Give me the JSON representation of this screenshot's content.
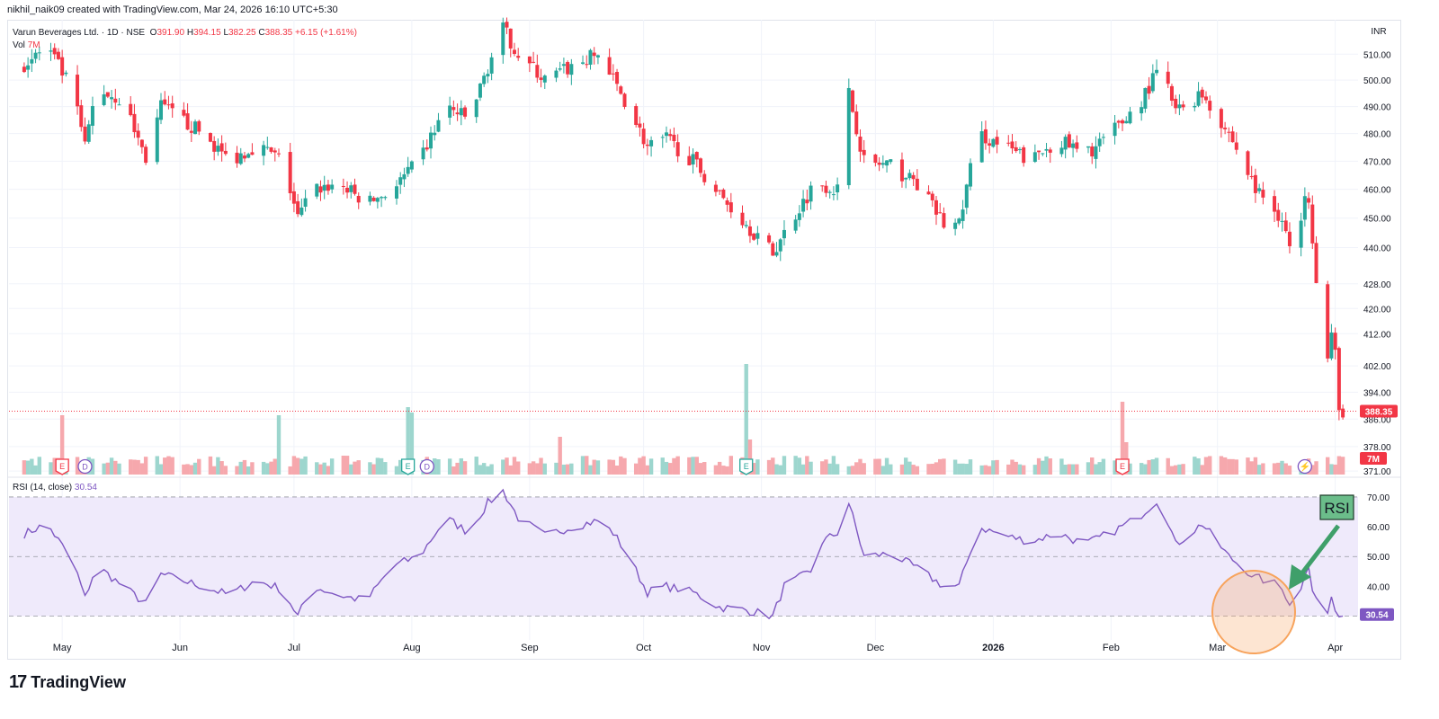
{
  "header": {
    "created_by": "nikhil_naik09 created with TradingView.com, Mar 24, 2026 16:10 UTC+5:30"
  },
  "legend": {
    "symbol": "Varun Beverages Ltd. · 1D · NSE",
    "open_label": "O",
    "open": "391.90",
    "high_label": "H",
    "high": "394.15",
    "low_label": "L",
    "low": "382.25",
    "close_label": "C",
    "close": "388.35",
    "change": "+6.15 (+1.61%)",
    "vol_label": "Vol",
    "vol_value": "7M"
  },
  "currency": "INR",
  "rsi": {
    "label": "RSI (14, close)",
    "value": "30.54",
    "annotation": "RSI"
  },
  "colors": {
    "up": "#26a69a",
    "down": "#f23645",
    "vol_up": "#9dd6ce",
    "vol_down": "#f6a8ad",
    "rsi_line": "#7e57c2",
    "rsi_band": "#efeafb",
    "highlight_circle": "#f7a35c",
    "arrow": "#3f9f6a"
  },
  "price_axis": {
    "ticks": [
      "510.00",
      "500.00",
      "490.00",
      "480.00",
      "470.00",
      "460.00",
      "450.00",
      "440.00",
      "428.00",
      "420.00",
      "412.00",
      "402.00",
      "394.00",
      "386.00",
      "378.00",
      "371.00"
    ],
    "last_price": "388.35",
    "volume_badge": "7M"
  },
  "rsi_axis": {
    "ticks": [
      "70.00",
      "60.00",
      "50.00",
      "40.00"
    ],
    "last_value": "30.54"
  },
  "time_axis": {
    "labels": [
      "May",
      "Jun",
      "Jul",
      "Aug",
      "Sep",
      "Oct",
      "Nov",
      "Dec",
      "2026",
      "Feb",
      "Mar",
      "Apr"
    ]
  },
  "event_markers": [
    {
      "type": "E",
      "color": "#f23645",
      "date": "2025-05-01"
    },
    {
      "type": "D",
      "color": "#7e57c2",
      "date": "2025-05-07"
    },
    {
      "type": "E",
      "color": "#26a69a",
      "date": "2025-07-31"
    },
    {
      "type": "D",
      "color": "#7e57c2",
      "date": "2025-08-05"
    },
    {
      "type": "E",
      "color": "#26a69a",
      "date": "2025-10-28"
    },
    {
      "type": "E",
      "color": "#f23645",
      "date": "2026-02-04"
    },
    {
      "type": "bolt",
      "color": "#7e57c2",
      "date": "2026-03-24"
    }
  ],
  "chart_data": {
    "type": "candlestick",
    "x_range": [
      "2025-04-17",
      "2026-04-07"
    ],
    "price_scale": "log",
    "price_range": [
      370,
      520
    ],
    "rsi_range": [
      22,
      73
    ],
    "rsi_levels": [
      70,
      50,
      30
    ],
    "anchors": [
      {
        "date": "2025-04-20",
        "price": 505,
        "rsi": 57
      },
      {
        "date": "2025-04-27",
        "price": 513,
        "rsi": 61
      },
      {
        "date": "2025-05-04",
        "price": 495,
        "rsi": 48
      },
      {
        "date": "2025-05-07",
        "price": 475,
        "rsi": 36
      },
      {
        "date": "2025-05-10",
        "price": 497,
        "rsi": 47
      },
      {
        "date": "2025-05-17",
        "price": 492,
        "rsi": 40
      },
      {
        "date": "2025-05-23",
        "price": 471,
        "rsi": 34
      },
      {
        "date": "2025-05-27",
        "price": 490,
        "rsi": 44
      },
      {
        "date": "2025-06-07",
        "price": 480,
        "rsi": 40
      },
      {
        "date": "2025-06-14",
        "price": 470,
        "rsi": 37
      },
      {
        "date": "2025-06-21",
        "price": 476,
        "rsi": 42
      },
      {
        "date": "2025-06-28",
        "price": 470,
        "rsi": 39
      },
      {
        "date": "2025-07-02",
        "price": 450,
        "rsi": 30
      },
      {
        "date": "2025-07-06",
        "price": 460,
        "rsi": 40
      },
      {
        "date": "2025-07-13",
        "price": 462,
        "rsi": 37
      },
      {
        "date": "2025-07-20",
        "price": 455,
        "rsi": 35
      },
      {
        "date": "2025-07-27",
        "price": 460,
        "rsi": 47
      },
      {
        "date": "2025-08-03",
        "price": 470,
        "rsi": 50
      },
      {
        "date": "2025-08-10",
        "price": 490,
        "rsi": 63
      },
      {
        "date": "2025-08-16",
        "price": 485,
        "rsi": 58
      },
      {
        "date": "2025-08-21",
        "price": 505,
        "rsi": 68
      },
      {
        "date": "2025-08-25",
        "price": 520,
        "rsi": 72
      },
      {
        "date": "2025-08-29",
        "price": 510,
        "rsi": 63
      },
      {
        "date": "2025-09-05",
        "price": 500,
        "rsi": 57
      },
      {
        "date": "2025-09-12",
        "price": 505,
        "rsi": 60
      },
      {
        "date": "2025-09-19",
        "price": 510,
        "rsi": 62
      },
      {
        "date": "2025-09-23",
        "price": 500,
        "rsi": 58
      },
      {
        "date": "2025-09-27",
        "price": 490,
        "rsi": 50
      },
      {
        "date": "2025-10-02",
        "price": 475,
        "rsi": 38
      },
      {
        "date": "2025-10-07",
        "price": 478,
        "rsi": 40
      },
      {
        "date": "2025-10-14",
        "price": 470,
        "rsi": 38
      },
      {
        "date": "2025-10-21",
        "price": 458,
        "rsi": 33
      },
      {
        "date": "2025-10-28",
        "price": 448,
        "rsi": 32
      },
      {
        "date": "2025-11-04",
        "price": 438,
        "rsi": 30
      },
      {
        "date": "2025-11-07",
        "price": 445,
        "rsi": 40
      },
      {
        "date": "2025-11-14",
        "price": 460,
        "rsi": 45
      },
      {
        "date": "2025-11-17",
        "price": 462,
        "rsi": 55
      },
      {
        "date": "2025-11-21",
        "price": 460,
        "rsi": 58
      },
      {
        "date": "2025-11-24",
        "price": 495,
        "rsi": 68
      },
      {
        "date": "2025-11-28",
        "price": 470,
        "rsi": 50
      },
      {
        "date": "2025-12-05",
        "price": 468,
        "rsi": 51
      },
      {
        "date": "2025-12-12",
        "price": 462,
        "rsi": 46
      },
      {
        "date": "2025-12-19",
        "price": 448,
        "rsi": 40
      },
      {
        "date": "2025-12-23",
        "price": 448,
        "rsi": 40
      },
      {
        "date": "2025-12-28",
        "price": 480,
        "rsi": 60
      },
      {
        "date": "2026-01-04",
        "price": 475,
        "rsi": 57
      },
      {
        "date": "2026-01-11",
        "price": 470,
        "rsi": 55
      },
      {
        "date": "2026-01-18",
        "price": 478,
        "rsi": 58
      },
      {
        "date": "2026-01-25",
        "price": 472,
        "rsi": 54
      },
      {
        "date": "2026-02-01",
        "price": 480,
        "rsi": 58
      },
      {
        "date": "2026-02-08",
        "price": 490,
        "rsi": 63
      },
      {
        "date": "2026-02-14",
        "price": 505,
        "rsi": 70
      },
      {
        "date": "2026-02-18",
        "price": 488,
        "rsi": 54
      },
      {
        "date": "2026-02-25",
        "price": 495,
        "rsi": 61
      },
      {
        "date": "2026-03-04",
        "price": 480,
        "rsi": 50
      },
      {
        "date": "2026-03-11",
        "price": 460,
        "rsi": 43
      },
      {
        "date": "2026-03-18",
        "price": 450,
        "rsi": 40
      },
      {
        "date": "2026-03-21",
        "price": 435,
        "rsi": 30
      },
      {
        "date": "2026-03-22",
        "price": 458,
        "rsi": 42
      },
      {
        "date": "2026-03-23",
        "price": 447,
        "rsi": 40
      },
      {
        "date": "2026-03-24",
        "price": 460,
        "rsi": 45
      },
      {
        "date": "2026-03-25",
        "price": 458,
        "rsi": 47
      },
      {
        "date": "2026-03-26",
        "price": 444,
        "rsi": 38
      },
      {
        "date": "2026-03-27",
        "price": 430,
        "rsi": 36
      },
      {
        "date": "2026-03-28",
        "price": 440,
        "rsi": 42
      },
      {
        "date": "2026-03-29",
        "price": 410,
        "rsi": 33
      },
      {
        "date": "2026-03-30",
        "price": 404,
        "rsi": 31
      },
      {
        "date": "2026-03-31",
        "price": 412,
        "rsi": 35
      },
      {
        "date": "2026-04-01",
        "price": 405,
        "rsi": 33
      },
      {
        "date": "2026-04-02",
        "price": 388,
        "rsi": 30
      },
      {
        "date": "2026-04-03",
        "price": 388.35,
        "rsi": 30.54
      }
    ],
    "volume_spikes": [
      {
        "date": "2025-05-01",
        "volume_m": 22,
        "up": false
      },
      {
        "date": "2025-06-27",
        "volume_m": 22,
        "up": true
      },
      {
        "date": "2025-07-31",
        "volume_m": 25,
        "up": true
      },
      {
        "date": "2025-08-01",
        "volume_m": 23,
        "up": true
      },
      {
        "date": "2025-09-09",
        "volume_m": 14,
        "up": false
      },
      {
        "date": "2025-10-28",
        "volume_m": 41,
        "up": true
      },
      {
        "date": "2025-10-29",
        "volume_m": 13,
        "up": false
      },
      {
        "date": "2026-02-04",
        "volume_m": 27,
        "up": false
      },
      {
        "date": "2026-02-05",
        "volume_m": 12,
        "up": false
      }
    ]
  }
}
